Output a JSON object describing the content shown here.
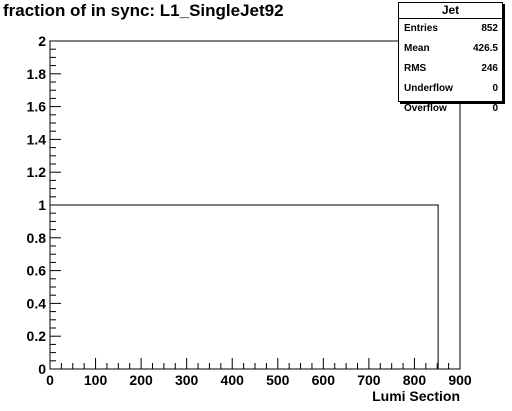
{
  "title": "fraction of in sync: L1_SingleJet92",
  "stats": {
    "name": "Jet",
    "rows": [
      {
        "label": "Entries",
        "value": "852"
      },
      {
        "label": "Mean",
        "value": "426.5"
      },
      {
        "label": "RMS",
        "value": "246"
      },
      {
        "label": "Underflow",
        "value": "0"
      },
      {
        "label": "Overflow",
        "value": "0"
      }
    ]
  },
  "chart_data": {
    "type": "histogram",
    "title": "fraction of in sync: L1_SingleJet92",
    "xlabel": "Lumi Section",
    "ylabel": "",
    "xlim": [
      0,
      900
    ],
    "ylim": [
      0,
      2
    ],
    "x_ticks": [
      "0",
      "100",
      "200",
      "300",
      "400",
      "500",
      "600",
      "700",
      "800",
      "900"
    ],
    "y_ticks": [
      "0",
      "0.2",
      "0.4",
      "0.6",
      "0.8",
      "1",
      "1.2",
      "1.4",
      "1.6",
      "1.8",
      "2"
    ],
    "series": [
      {
        "x_start": 0,
        "x_end": 852,
        "value": 1
      }
    ],
    "grid": false,
    "legend": "top-right"
  }
}
